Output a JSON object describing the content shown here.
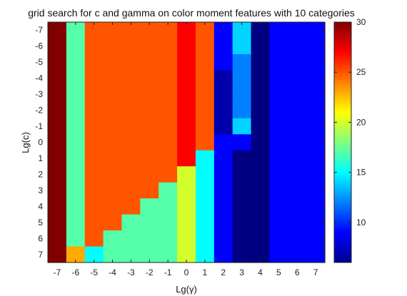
{
  "chart_data": {
    "type": "heatmap",
    "title": "grid search for c and gamma on color moment features with 10 categories",
    "xlabel": "Lg(γ)",
    "ylabel": "Lg(c)",
    "x_ticks": [
      "-7",
      "-6",
      "-5",
      "-4",
      "-3",
      "-2",
      "-1",
      "0",
      "1",
      "2",
      "3",
      "4",
      "5",
      "6",
      "7"
    ],
    "y_ticks": [
      "-7",
      "-6",
      "-5",
      "-4",
      "-3",
      "-2",
      "-1",
      "0",
      "1",
      "2",
      "3",
      "4",
      "5",
      "6",
      "7"
    ],
    "colorbar": {
      "min": 6,
      "max": 30,
      "ticks": [
        10,
        15,
        20,
        25,
        30
      ],
      "colormap": "jet"
    },
    "values": [
      [
        30,
        17,
        25,
        25,
        25,
        25,
        25,
        27,
        25,
        9,
        14,
        6,
        9,
        9,
        9
      ],
      [
        30,
        17,
        25,
        25,
        25,
        25,
        25,
        27,
        25,
        9,
        14,
        6,
        9,
        9,
        9
      ],
      [
        30,
        17,
        25,
        25,
        25,
        25,
        25,
        27,
        25,
        9,
        12,
        6,
        9,
        9,
        9
      ],
      [
        30,
        17,
        25,
        25,
        25,
        25,
        25,
        27,
        25,
        7,
        12,
        6,
        9,
        9,
        9
      ],
      [
        30,
        17,
        25,
        25,
        25,
        25,
        25,
        27,
        25,
        7,
        12,
        6,
        9,
        9,
        9
      ],
      [
        30,
        17,
        25,
        25,
        25,
        25,
        25,
        27,
        25,
        7,
        12,
        6,
        9,
        9,
        9
      ],
      [
        30,
        17,
        25,
        25,
        25,
        25,
        25,
        27,
        25,
        7,
        14,
        6,
        9,
        9,
        9
      ],
      [
        30,
        17,
        25,
        25,
        25,
        25,
        25,
        27,
        25,
        9,
        9,
        6,
        9,
        9,
        9
      ],
      [
        30,
        17,
        25,
        25,
        25,
        25,
        25,
        27,
        15,
        9,
        6,
        6,
        9,
        9,
        9
      ],
      [
        30,
        17,
        25,
        25,
        25,
        25,
        25,
        20,
        15,
        9,
        6,
        6,
        9,
        9,
        9
      ],
      [
        30,
        17,
        25,
        25,
        25,
        25,
        17,
        20,
        15,
        9,
        6,
        6,
        9,
        9,
        9
      ],
      [
        30,
        17,
        25,
        25,
        25,
        17,
        17,
        20,
        15,
        9,
        6,
        6,
        9,
        9,
        9
      ],
      [
        30,
        17,
        25,
        25,
        17,
        17,
        17,
        20,
        15,
        9,
        6,
        6,
        9,
        9,
        9
      ],
      [
        30,
        17,
        25,
        17,
        17,
        17,
        17,
        20,
        15,
        9,
        6,
        6,
        9,
        9,
        9
      ],
      [
        30,
        23,
        15,
        17,
        17,
        17,
        17,
        20,
        15,
        9,
        6,
        6,
        9,
        9,
        9
      ]
    ]
  }
}
